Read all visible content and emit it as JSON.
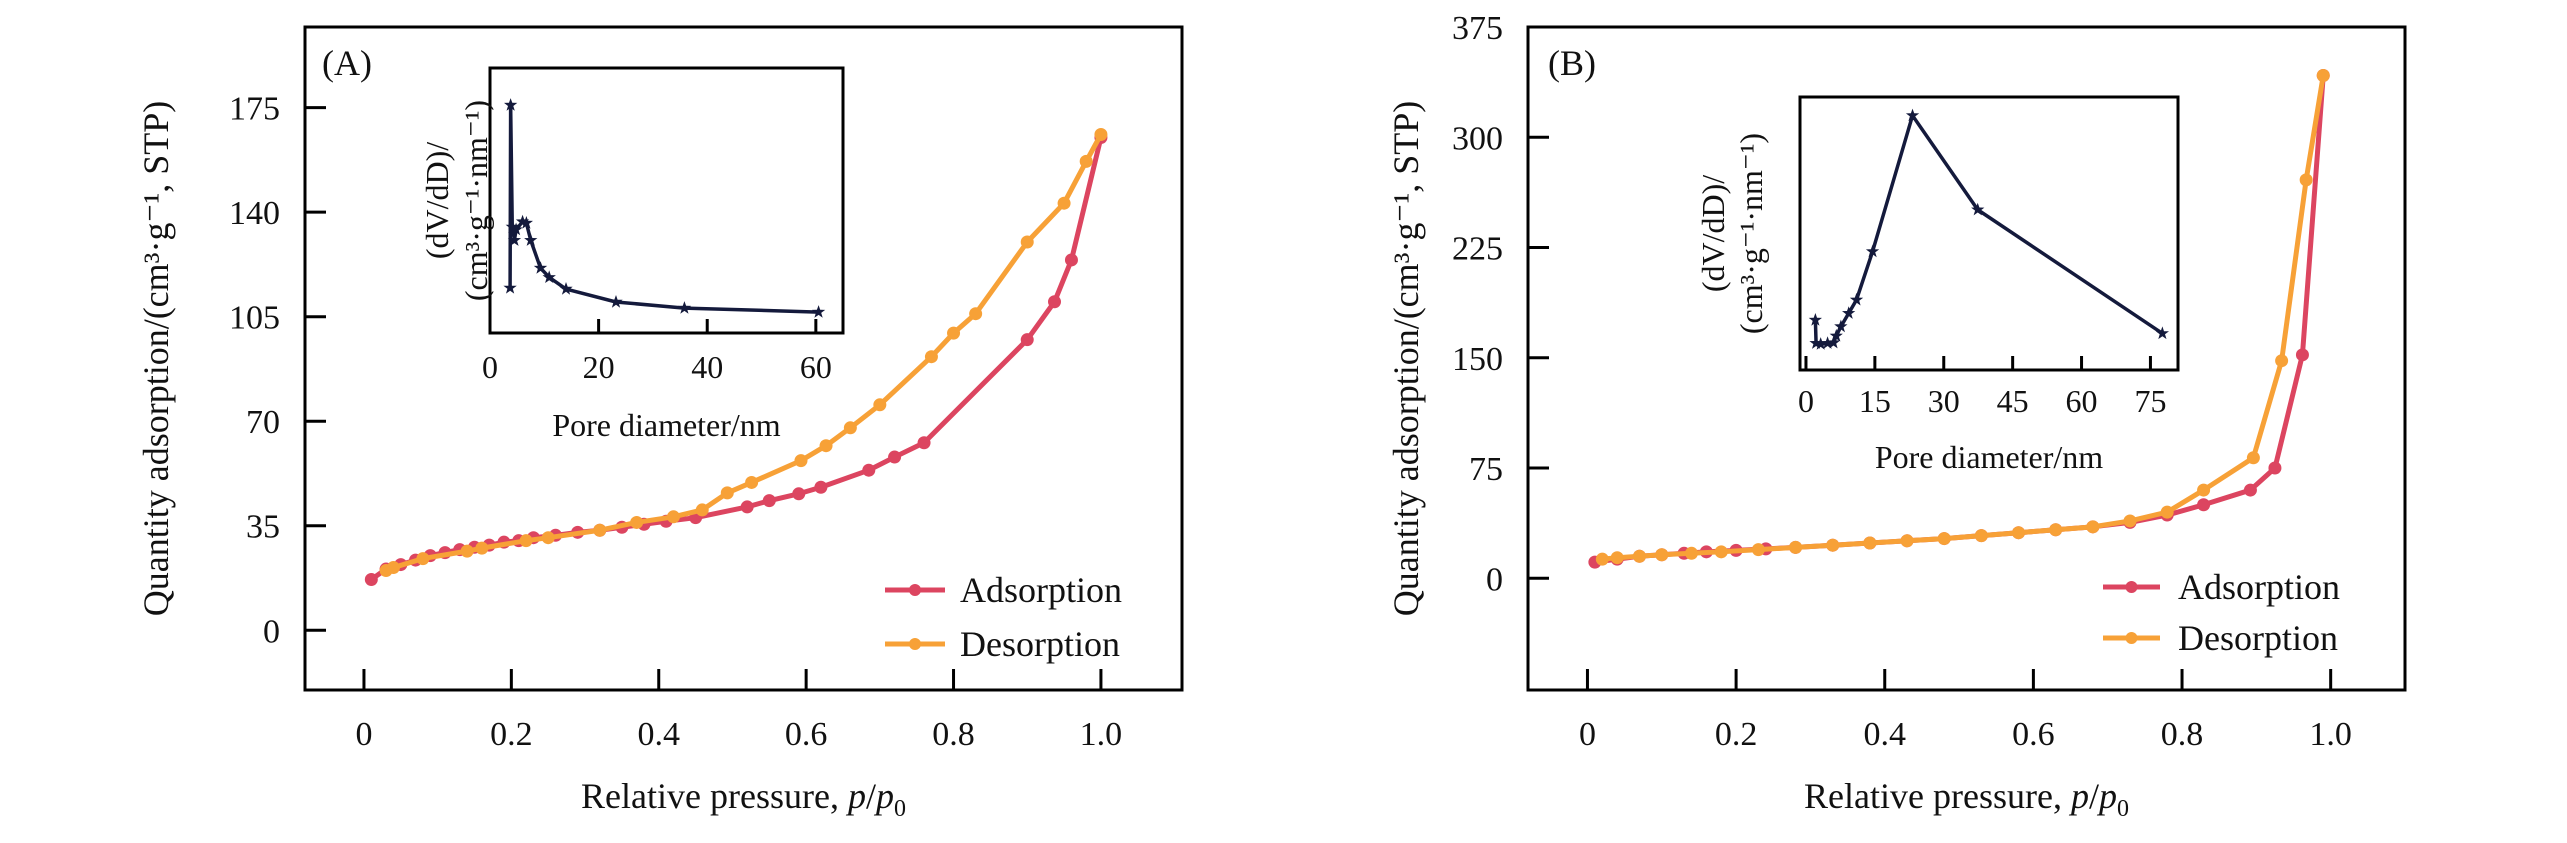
{
  "colors": {
    "adsorption": "#dc4560",
    "desorption": "#f7a137",
    "inset": "#141a3c",
    "axis": "#000000"
  },
  "chart_data": [
    {
      "type": "line",
      "panel_label": "(A)",
      "xlabel": "Relative pressure, p/p0",
      "xlabel_parts": {
        "main": "Relative pressure, ",
        "p": "p",
        "slash": "/",
        "p0": "p",
        "sub": "0"
      },
      "ylabel": "Quantity adsorption/(cm³·g⁻¹, STP)",
      "xlim": [
        -0.08,
        1.11
      ],
      "ylim": [
        -20,
        202
      ],
      "xticks": [
        0,
        0.2,
        0.4,
        0.6,
        0.8,
        1.0
      ],
      "xtick_labels": [
        "0",
        "0.2",
        "0.4",
        "0.6",
        "0.8",
        "1.0"
      ],
      "yticks": [
        0,
        35,
        70,
        105,
        140,
        175
      ],
      "ytick_labels": [
        "0",
        "35",
        "70",
        "105",
        "140",
        "175"
      ],
      "legend": {
        "placement": "bottom-right",
        "entries": [
          "Adsorption",
          "Desorption"
        ]
      },
      "series": [
        {
          "name": "Adsorption",
          "x": [
            0.01,
            0.03,
            0.05,
            0.07,
            0.09,
            0.11,
            0.13,
            0.15,
            0.17,
            0.19,
            0.21,
            0.23,
            0.26,
            0.29,
            0.32,
            0.35,
            0.38,
            0.41,
            0.45,
            0.52,
            0.55,
            0.59,
            0.62,
            0.685,
            0.72,
            0.76,
            0.9,
            0.937,
            0.96,
            1.0
          ],
          "y": [
            17,
            20.5,
            22,
            23.5,
            25,
            26,
            27,
            27.8,
            28.5,
            29.5,
            30,
            31,
            31.8,
            32.8,
            33.5,
            34.5,
            35.5,
            36.5,
            37.7,
            41.3,
            43.4,
            45.7,
            47.9,
            53.6,
            58,
            62.8,
            97.3,
            110,
            124,
            165
          ]
        },
        {
          "name": "Desorption",
          "x": [
            1.0,
            0.98,
            0.95,
            0.9,
            0.83,
            0.8,
            0.77,
            0.7,
            0.66,
            0.627,
            0.593,
            0.526,
            0.493,
            0.459,
            0.42,
            0.37,
            0.32,
            0.25,
            0.22,
            0.16,
            0.14,
            0.08,
            0.04,
            0.03
          ],
          "y": [
            166,
            157,
            143,
            130,
            106,
            99.5,
            91.6,
            75.5,
            67.8,
            61.8,
            56.8,
            49.5,
            46,
            40.3,
            38,
            36.1,
            33.5,
            31,
            30,
            27.5,
            26.5,
            24,
            21,
            20
          ]
        }
      ],
      "inset": {
        "type": "line",
        "xlabel": "Pore diameter/nm",
        "ylabel_line1": "(dV/dD)/",
        "ylabel_line2": "(cm³·g⁻¹·nm⁻¹)",
        "xlim": [
          0,
          65
        ],
        "xticks": [
          0,
          20,
          40,
          60
        ],
        "xtick_labels": [
          "0",
          "20",
          "40",
          "60"
        ],
        "y_units": "relative (no tick labels)",
        "ylim": [
          0,
          1
        ],
        "x": [
          3.7,
          3.8,
          4.1,
          4.5,
          4.8,
          6.0,
          6.7,
          7.5,
          9.3,
          10.9,
          14.0,
          23.2,
          35.8,
          60.5
        ],
        "y": [
          0.17,
          0.86,
          0.4,
          0.35,
          0.39,
          0.42,
          0.415,
          0.35,
          0.245,
          0.21,
          0.166,
          0.117,
          0.094,
          0.079
        ]
      }
    },
    {
      "type": "line",
      "panel_label": "(B)",
      "xlabel": "Relative pressure, p/p0",
      "xlabel_parts": {
        "main": "Relative pressure, ",
        "p": "p",
        "slash": "/",
        "p0": "p",
        "sub": "0"
      },
      "ylabel": "Quantity adsorption/(cm³·g⁻¹, STP)",
      "xlim": [
        -0.08,
        1.1
      ],
      "ylim": [
        -76,
        375
      ],
      "xticks": [
        0,
        0.2,
        0.4,
        0.6,
        0.8,
        1.0
      ],
      "xtick_labels": [
        "0",
        "0.2",
        "0.4",
        "0.6",
        "0.8",
        "1.0"
      ],
      "yticks": [
        0,
        75,
        150,
        225,
        300,
        375
      ],
      "ytick_labels": [
        "0",
        "75",
        "150",
        "225",
        "300",
        "375"
      ],
      "legend": {
        "placement": "bottom-right",
        "entries": [
          "Adsorption",
          "Desorption"
        ]
      },
      "series": [
        {
          "name": "Adsorption",
          "x": [
            0.01,
            0.04,
            0.07,
            0.1,
            0.13,
            0.16,
            0.2,
            0.24,
            0.28,
            0.33,
            0.38,
            0.43,
            0.48,
            0.53,
            0.58,
            0.63,
            0.68,
            0.73,
            0.78,
            0.829,
            0.892,
            0.925,
            0.962,
            0.99
          ],
          "y": [
            11,
            13,
            15,
            16,
            17,
            18,
            19,
            20,
            21,
            22.5,
            24,
            25.5,
            27,
            29,
            31,
            33,
            35,
            38,
            43,
            50,
            60,
            75,
            152,
            342
          ]
        },
        {
          "name": "Desorption",
          "x": [
            0.99,
            0.967,
            0.934,
            0.896,
            0.829,
            0.78,
            0.73,
            0.68,
            0.63,
            0.58,
            0.53,
            0.48,
            0.43,
            0.38,
            0.33,
            0.28,
            0.23,
            0.18,
            0.14,
            0.1,
            0.07,
            0.04,
            0.02
          ],
          "y": [
            342,
            271,
            148,
            82,
            60,
            45,
            39,
            35,
            33,
            31,
            29,
            27,
            25.5,
            24,
            22.5,
            21,
            19.5,
            18,
            17,
            16,
            15,
            14,
            13
          ]
        }
      ],
      "inset": {
        "type": "line",
        "xlabel": "Pore diameter/nm",
        "ylabel_line1": "(dV/dD)/",
        "ylabel_line2": "(cm³·g⁻¹·nm⁻¹)",
        "xlim": [
          -1.3,
          81
        ],
        "xticks": [
          0,
          15,
          30,
          45,
          60,
          75
        ],
        "xtick_labels": [
          "0",
          "15",
          "30",
          "45",
          "60",
          "75"
        ],
        "y_units": "relative (no tick labels)",
        "ylim": [
          0,
          1
        ],
        "x": [
          2.05,
          2.2,
          3.2,
          4.7,
          6.0,
          6.6,
          7.6,
          9.3,
          11.0,
          14.5,
          23.2,
          37.4,
          77.6
        ],
        "y": [
          0.183,
          0.098,
          0.095,
          0.098,
          0.1,
          0.125,
          0.159,
          0.208,
          0.257,
          0.434,
          0.932,
          0.587,
          0.134
        ]
      }
    }
  ]
}
